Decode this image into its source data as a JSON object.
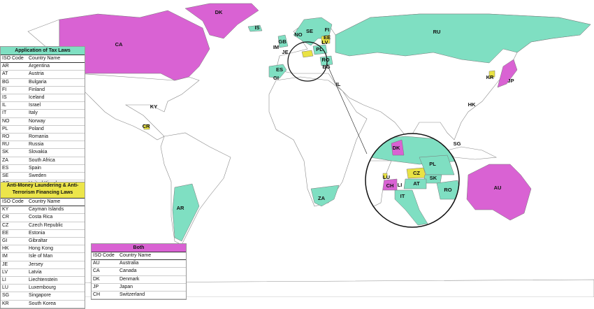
{
  "map_labels": [
    "DK",
    "IS",
    "CA",
    "NO",
    "SE",
    "FI",
    "EE",
    "LV",
    "GB",
    "IM",
    "JE",
    "PL",
    "RU",
    "RO",
    "BG",
    "ES",
    "GI",
    "IL",
    "KR",
    "JP",
    "KY",
    "CR",
    "HK",
    "SG",
    "AR",
    "ZA",
    "AU"
  ],
  "inset_labels": [
    "DK",
    "PL",
    "LU",
    "CZ",
    "SK",
    "CH",
    "LI",
    "AT",
    "RO",
    "IT"
  ],
  "tables": [
    {
      "title": "Application of Tax Laws",
      "header": [
        "ISO Code",
        "Country Name"
      ],
      "rows": [
        [
          "AR",
          "Argentina"
        ],
        [
          "AT",
          "Austria"
        ],
        [
          "BG",
          "Bulgaria"
        ],
        [
          "FI",
          "Finland"
        ],
        [
          "IS",
          "Iceland"
        ],
        [
          "IL",
          "Israel"
        ],
        [
          "IT",
          "Italy"
        ],
        [
          "NO",
          "Norway"
        ],
        [
          "PL",
          "Poland"
        ],
        [
          "RO",
          "Romania"
        ],
        [
          "RU",
          "Russia"
        ],
        [
          "SK",
          "Slovakia"
        ],
        [
          "ZA",
          "South Africa"
        ],
        [
          "ES",
          "Spain"
        ],
        [
          "SE",
          "Sweden"
        ],
        [
          "GB",
          "United Kingdom"
        ]
      ]
    },
    {
      "title": "Anti-Money Laundering & Anti-Terrorism Financing Laws",
      "header": [
        "ISO Code",
        "Country Name"
      ],
      "rows": [
        [
          "KY",
          "Cayman Islands"
        ],
        [
          "CR",
          "Costa Rica"
        ],
        [
          "CZ",
          "Czech Republic"
        ],
        [
          "EE",
          "Estonia"
        ],
        [
          "GI",
          "Gibraltar"
        ],
        [
          "HK",
          "Hong Kong"
        ],
        [
          "IM",
          "Isle of Man"
        ],
        [
          "JE",
          "Jersey"
        ],
        [
          "LV",
          "Latvia"
        ],
        [
          "LI",
          "Liechtenstein"
        ],
        [
          "LU",
          "Luxembourg"
        ],
        [
          "SG",
          "Singapore"
        ],
        [
          "KR",
          "South Korea"
        ]
      ]
    },
    {
      "title": "Both",
      "header": [
        "ISO Code",
        "Country Name"
      ],
      "rows": [
        [
          "AU",
          "Australia"
        ],
        [
          "CA",
          "Canada"
        ],
        [
          "DK",
          "Denmark"
        ],
        [
          "JP",
          "Japan"
        ],
        [
          "CH",
          "Switzerland"
        ]
      ]
    }
  ]
}
